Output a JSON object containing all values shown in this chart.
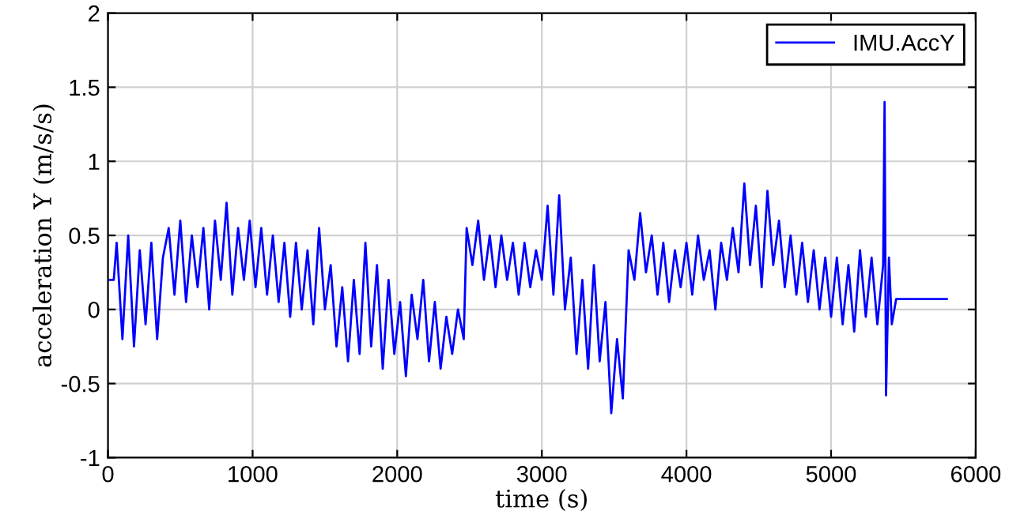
{
  "chart_data": {
    "type": "line",
    "xlabel": "time (s)",
    "ylabel": "acceleration Y (m/s/s)",
    "xlim": [
      0,
      6000
    ],
    "xticks": [
      0,
      1000,
      2000,
      3000,
      4000,
      5000,
      6000
    ],
    "ylim": [
      -1,
      2
    ],
    "yticks": [
      -1,
      -0.5,
      0,
      0.5,
      1,
      1.5,
      2
    ],
    "grid": true,
    "legend": "top right",
    "marker": "none",
    "line_style": "solid",
    "series": [
      {
        "name": "IMU.AccY",
        "color": "#0000ff",
        "x": [
          0,
          20,
          40,
          60,
          100,
          140,
          180,
          220,
          260,
          300,
          340,
          380,
          420,
          460,
          500,
          540,
          580,
          620,
          660,
          700,
          740,
          780,
          820,
          860,
          900,
          940,
          980,
          1020,
          1060,
          1100,
          1140,
          1180,
          1220,
          1260,
          1300,
          1340,
          1380,
          1420,
          1460,
          1500,
          1540,
          1580,
          1620,
          1660,
          1700,
          1740,
          1780,
          1820,
          1860,
          1900,
          1940,
          1980,
          2020,
          2060,
          2100,
          2140,
          2180,
          2220,
          2260,
          2300,
          2340,
          2380,
          2420,
          2460,
          2480,
          2520,
          2560,
          2600,
          2640,
          2680,
          2720,
          2760,
          2800,
          2840,
          2880,
          2920,
          2960,
          3000,
          3040,
          3080,
          3120,
          3160,
          3200,
          3240,
          3280,
          3320,
          3360,
          3400,
          3440,
          3480,
          3520,
          3560,
          3600,
          3640,
          3680,
          3720,
          3760,
          3800,
          3840,
          3880,
          3920,
          3960,
          4000,
          4040,
          4080,
          4120,
          4160,
          4200,
          4240,
          4280,
          4320,
          4360,
          4400,
          4440,
          4480,
          4520,
          4560,
          4600,
          4640,
          4680,
          4720,
          4760,
          4800,
          4840,
          4880,
          4920,
          4960,
          5000,
          5040,
          5080,
          5120,
          5160,
          5200,
          5240,
          5280,
          5320,
          5360,
          5370,
          5380,
          5400,
          5420,
          5450,
          5800
        ],
        "values": [
          0.2,
          0.2,
          0.2,
          0.45,
          -0.2,
          0.5,
          -0.25,
          0.4,
          -0.1,
          0.45,
          -0.2,
          0.35,
          0.55,
          0.1,
          0.6,
          0.05,
          0.5,
          0.15,
          0.55,
          0.0,
          0.6,
          0.2,
          0.72,
          0.1,
          0.55,
          0.2,
          0.6,
          0.15,
          0.55,
          0.1,
          0.5,
          0.05,
          0.45,
          -0.05,
          0.45,
          0.0,
          0.4,
          -0.1,
          0.55,
          0.0,
          0.3,
          -0.25,
          0.15,
          -0.35,
          0.2,
          -0.3,
          0.45,
          -0.25,
          0.3,
          -0.4,
          0.2,
          -0.3,
          0.05,
          -0.45,
          0.1,
          -0.2,
          0.2,
          -0.35,
          0.05,
          -0.4,
          -0.05,
          -0.3,
          0.0,
          -0.2,
          0.55,
          0.3,
          0.6,
          0.2,
          0.5,
          0.15,
          0.5,
          0.2,
          0.45,
          0.1,
          0.45,
          0.15,
          0.4,
          0.2,
          0.7,
          0.1,
          0.77,
          0.0,
          0.35,
          -0.3,
          0.2,
          -0.4,
          0.3,
          -0.35,
          0.05,
          -0.7,
          -0.2,
          -0.6,
          0.4,
          0.2,
          0.65,
          0.25,
          0.5,
          0.1,
          0.45,
          0.05,
          0.4,
          0.15,
          0.45,
          0.1,
          0.5,
          0.2,
          0.4,
          0.0,
          0.45,
          0.2,
          0.55,
          0.25,
          0.85,
          0.3,
          0.7,
          0.15,
          0.8,
          0.3,
          0.6,
          0.15,
          0.5,
          0.1,
          0.45,
          0.05,
          0.4,
          0.0,
          0.35,
          -0.05,
          0.35,
          -0.1,
          0.3,
          -0.15,
          0.4,
          -0.05,
          0.35,
          -0.1,
          0.3,
          1.4,
          -0.58,
          0.35,
          -0.1,
          0.07,
          0.07
        ]
      }
    ]
  }
}
